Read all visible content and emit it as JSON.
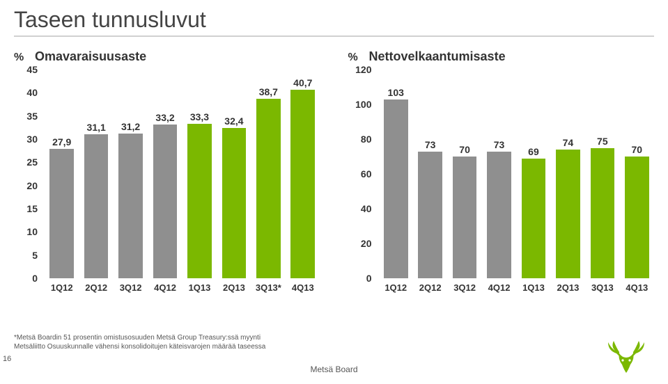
{
  "title": "Taseen tunnusluvut",
  "page_number": "16",
  "footer_brand": "Metsä Board",
  "footnote_line1": "*Metsä Boardin 51 prosentin omistusosuuden Metsä Group Treasury:ssä myynti",
  "footnote_line2": "Metsäliitto Osuuskunnalle vähensi konsolidoitujen käteisvarojen määrää taseessa",
  "colors": {
    "grey": "#8f8f8f",
    "green": "#7bb800",
    "logo_green": "#7bb800"
  },
  "chart_left": {
    "unit": "%",
    "subtitle": "Omavaraisuusaste",
    "ymin": 0,
    "ymax": 45,
    "ystep": 5,
    "categories": [
      "1Q12",
      "2Q12",
      "3Q12",
      "4Q12",
      "1Q13",
      "2Q13",
      "3Q13*",
      "4Q13"
    ],
    "values": [
      27.9,
      31.1,
      31.2,
      33.2,
      33.3,
      32.4,
      38.7,
      40.7
    ],
    "value_labels": [
      "27,9",
      "31,1",
      "31,2",
      "33,2",
      "33,3",
      "32,4",
      "38,7",
      "40,7"
    ],
    "bar_colors": [
      "grey",
      "grey",
      "grey",
      "grey",
      "green",
      "green",
      "green",
      "green"
    ]
  },
  "chart_right": {
    "unit": "%",
    "subtitle": "Nettovelkaantumisaste",
    "ymin": 0,
    "ymax": 120,
    "ystep": 20,
    "categories": [
      "1Q12",
      "2Q12",
      "3Q12",
      "4Q12",
      "1Q13",
      "2Q13",
      "3Q13",
      "4Q13"
    ],
    "values": [
      103,
      73,
      70,
      73,
      69,
      74,
      75,
      70
    ],
    "value_labels": [
      "103",
      "73",
      "70",
      "73",
      "69",
      "74",
      "75",
      "70"
    ],
    "bar_colors": [
      "grey",
      "grey",
      "grey",
      "grey",
      "green",
      "green",
      "green",
      "green"
    ]
  }
}
